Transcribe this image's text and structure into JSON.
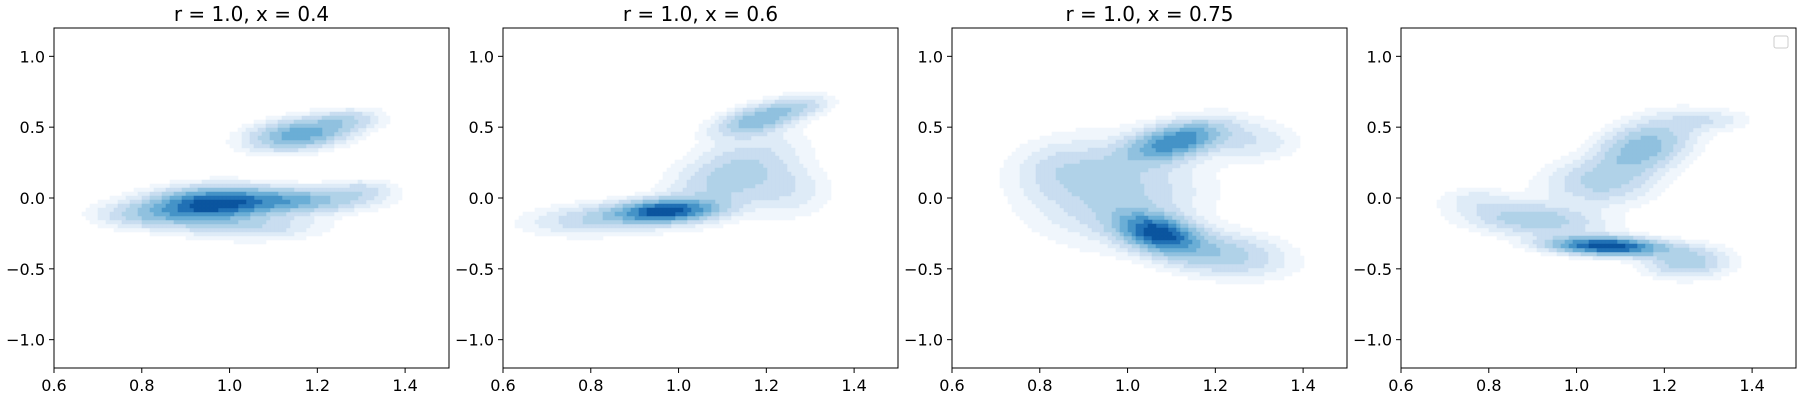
{
  "chart_data": [
    {
      "type": "kde-filled-contour",
      "title": "r = 1.0, x = 0.4",
      "xlim": [
        0.6,
        1.5
      ],
      "ylim": [
        -1.2,
        1.2
      ],
      "xticks": [
        0.6,
        0.8,
        1.0,
        1.2,
        1.4
      ],
      "xtick_labels": [
        "0.6",
        "0.8",
        "1.0",
        "1.2",
        "1.4"
      ],
      "yticks": [
        1.0,
        0.5,
        0.0,
        -0.5,
        -1.0
      ],
      "ytick_labels": [
        "1.0",
        "0.5",
        "0.0",
        "−0.5",
        "−1.0"
      ],
      "legend": false,
      "density_peaks": [
        {
          "x": 0.95,
          "y": -0.05,
          "sx": 0.085,
          "sy": 0.075,
          "rho": 0.15,
          "w": 1.0
        },
        {
          "x": 1.13,
          "y": -0.02,
          "sx": 0.1,
          "sy": 0.055,
          "rho": 0.0,
          "w": 0.55
        },
        {
          "x": 1.16,
          "y": 0.45,
          "sx": 0.07,
          "sy": 0.07,
          "rho": 0.3,
          "w": 0.6
        },
        {
          "x": 1.27,
          "y": 0.55,
          "sx": 0.05,
          "sy": 0.05,
          "rho": 0.2,
          "w": 0.2
        },
        {
          "x": 0.8,
          "y": -0.12,
          "sx": 0.07,
          "sy": 0.06,
          "rho": 0.0,
          "w": 0.22
        },
        {
          "x": 1.3,
          "y": 0.05,
          "sx": 0.05,
          "sy": 0.05,
          "rho": 0.0,
          "w": 0.18
        },
        {
          "x": 1.05,
          "y": -0.2,
          "sx": 0.1,
          "sy": 0.06,
          "rho": 0.0,
          "w": 0.22
        }
      ]
    },
    {
      "type": "kde-filled-contour",
      "title": "r = 1.0, x = 0.6",
      "xlim": [
        0.6,
        1.5
      ],
      "ylim": [
        -1.2,
        1.2
      ],
      "xticks": [
        0.6,
        0.8,
        1.0,
        1.2,
        1.4
      ],
      "xtick_labels": [
        "0.6",
        "0.8",
        "1.0",
        "1.2",
        "1.4"
      ],
      "yticks": [
        1.0,
        0.5,
        0.0,
        -0.5,
        -1.0
      ],
      "ytick_labels": [
        "1.0",
        "0.5",
        "0.0",
        "−0.5",
        "−1.0"
      ],
      "legend": false,
      "density_peaks": [
        {
          "x": 0.97,
          "y": -0.09,
          "sx": 0.07,
          "sy": 0.05,
          "rho": 0.2,
          "w": 1.0
        },
        {
          "x": 1.18,
          "y": 0.55,
          "sx": 0.06,
          "sy": 0.07,
          "rho": 0.5,
          "w": 0.45
        },
        {
          "x": 1.12,
          "y": 0.15,
          "sx": 0.09,
          "sy": 0.18,
          "rho": 0.5,
          "w": 0.3
        },
        {
          "x": 0.82,
          "y": -0.15,
          "sx": 0.1,
          "sy": 0.07,
          "rho": 0.2,
          "w": 0.25
        },
        {
          "x": 1.27,
          "y": 0.65,
          "sx": 0.05,
          "sy": 0.05,
          "rho": 0.3,
          "w": 0.2
        },
        {
          "x": 1.25,
          "y": 0.05,
          "sx": 0.06,
          "sy": 0.12,
          "rho": 0.0,
          "w": 0.14
        }
      ]
    },
    {
      "type": "kde-filled-contour",
      "title": "r = 1.0, x = 0.75",
      "xlim": [
        0.6,
        1.5
      ],
      "ylim": [
        -1.2,
        1.2
      ],
      "xticks": [
        0.6,
        0.8,
        1.0,
        1.2,
        1.4
      ],
      "xtick_labels": [
        "0.6",
        "0.8",
        "1.0",
        "1.2",
        "1.4"
      ],
      "yticks": [
        1.0,
        0.5,
        0.0,
        -0.5,
        -1.0
      ],
      "ytick_labels": [
        "1.0",
        "0.5",
        "0.0",
        "−0.5",
        "−1.0"
      ],
      "legend": false,
      "density_peaks": [
        {
          "x": 1.07,
          "y": -0.25,
          "sx": 0.06,
          "sy": 0.09,
          "rho": -0.4,
          "w": 1.0
        },
        {
          "x": 1.11,
          "y": 0.4,
          "sx": 0.07,
          "sy": 0.09,
          "rho": 0.5,
          "w": 0.75
        },
        {
          "x": 0.97,
          "y": 0.05,
          "sx": 0.12,
          "sy": 0.22,
          "rho": 0.0,
          "w": 0.28
        },
        {
          "x": 1.22,
          "y": -0.4,
          "sx": 0.09,
          "sy": 0.1,
          "rho": -0.2,
          "w": 0.3
        },
        {
          "x": 1.28,
          "y": 0.4,
          "sx": 0.07,
          "sy": 0.09,
          "rho": 0.0,
          "w": 0.15
        },
        {
          "x": 0.85,
          "y": 0.2,
          "sx": 0.07,
          "sy": 0.12,
          "rho": 0.0,
          "w": 0.12
        }
      ]
    },
    {
      "type": "kde-filled-contour",
      "title": "",
      "xlim": [
        0.6,
        1.5
      ],
      "ylim": [
        -1.2,
        1.2
      ],
      "xticks": [
        0.6,
        0.8,
        1.0,
        1.2,
        1.4
      ],
      "xtick_labels": [
        "0.6",
        "0.8",
        "1.0",
        "1.2",
        "1.4"
      ],
      "yticks": [
        1.0,
        0.5,
        0.0,
        -0.5,
        -1.0
      ],
      "ytick_labels": [
        "1.0",
        "0.5",
        "0.0",
        "−0.5",
        "−1.0"
      ],
      "legend": true,
      "legend_placement": "top-right",
      "density_peaks": [
        {
          "x": 1.07,
          "y": -0.34,
          "sx": 0.08,
          "sy": 0.04,
          "rho": -0.2,
          "w": 1.0
        },
        {
          "x": 1.15,
          "y": 0.35,
          "sx": 0.07,
          "sy": 0.13,
          "rho": 0.4,
          "w": 0.4
        },
        {
          "x": 0.9,
          "y": -0.15,
          "sx": 0.1,
          "sy": 0.08,
          "rho": -0.3,
          "w": 0.3
        },
        {
          "x": 1.25,
          "y": -0.45,
          "sx": 0.06,
          "sy": 0.07,
          "rho": 0.0,
          "w": 0.3
        },
        {
          "x": 1.05,
          "y": 0.1,
          "sx": 0.08,
          "sy": 0.1,
          "rho": 0.0,
          "w": 0.22
        },
        {
          "x": 1.3,
          "y": 0.55,
          "sx": 0.06,
          "sy": 0.05,
          "rho": 0.0,
          "w": 0.12
        },
        {
          "x": 0.77,
          "y": 0.0,
          "sx": 0.05,
          "sy": 0.05,
          "rho": 0.0,
          "w": 0.08
        }
      ]
    }
  ],
  "colors": {
    "levels": [
      "#f0f6fc",
      "#deebf7",
      "#c9ddf0",
      "#b0d2e8",
      "#90c1df",
      "#6baed6",
      "#4593c7",
      "#2171b5",
      "#0b559f"
    ],
    "axis": "#000000",
    "legend_frame": "#cccccc"
  }
}
